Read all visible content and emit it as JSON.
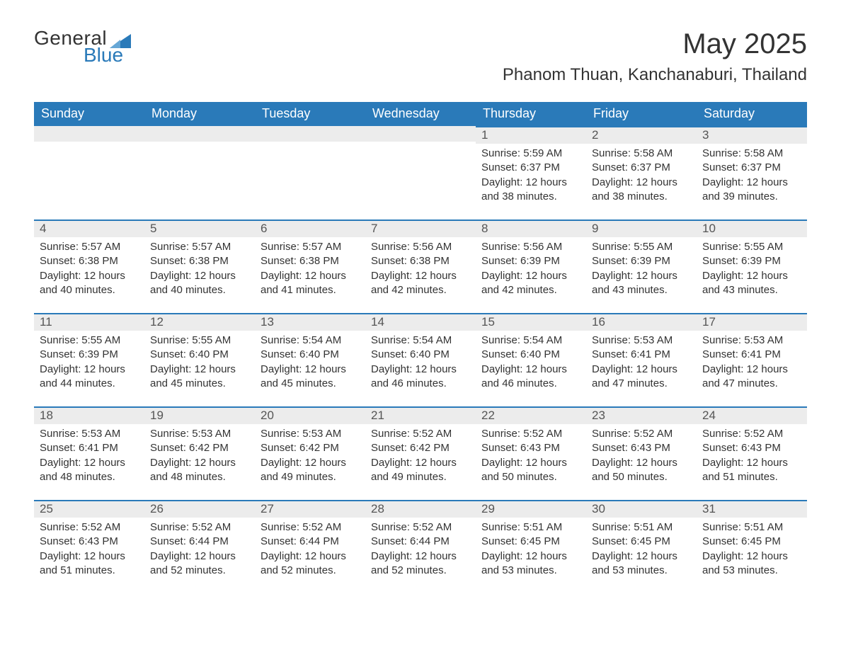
{
  "brand": {
    "word1": "General",
    "word2": "Blue",
    "sail_color": "#2a7ab9",
    "text_color": "#333333"
  },
  "title": "May 2025",
  "location": "Phanom Thuan, Kanchanaburi, Thailand",
  "header_bg": "#2a7ab9",
  "header_text_color": "#ffffff",
  "daynum_bg": "#ececec",
  "daynum_border": "#2a7ab9",
  "body_text_color": "#333333",
  "weekdays": [
    "Sunday",
    "Monday",
    "Tuesday",
    "Wednesday",
    "Thursday",
    "Friday",
    "Saturday"
  ],
  "first_weekday_index": 4,
  "days": [
    {
      "n": 1,
      "sunrise": "5:59 AM",
      "sunset": "6:37 PM",
      "daylight": "12 hours and 38 minutes."
    },
    {
      "n": 2,
      "sunrise": "5:58 AM",
      "sunset": "6:37 PM",
      "daylight": "12 hours and 38 minutes."
    },
    {
      "n": 3,
      "sunrise": "5:58 AM",
      "sunset": "6:37 PM",
      "daylight": "12 hours and 39 minutes."
    },
    {
      "n": 4,
      "sunrise": "5:57 AM",
      "sunset": "6:38 PM",
      "daylight": "12 hours and 40 minutes."
    },
    {
      "n": 5,
      "sunrise": "5:57 AM",
      "sunset": "6:38 PM",
      "daylight": "12 hours and 40 minutes."
    },
    {
      "n": 6,
      "sunrise": "5:57 AM",
      "sunset": "6:38 PM",
      "daylight": "12 hours and 41 minutes."
    },
    {
      "n": 7,
      "sunrise": "5:56 AM",
      "sunset": "6:38 PM",
      "daylight": "12 hours and 42 minutes."
    },
    {
      "n": 8,
      "sunrise": "5:56 AM",
      "sunset": "6:39 PM",
      "daylight": "12 hours and 42 minutes."
    },
    {
      "n": 9,
      "sunrise": "5:55 AM",
      "sunset": "6:39 PM",
      "daylight": "12 hours and 43 minutes."
    },
    {
      "n": 10,
      "sunrise": "5:55 AM",
      "sunset": "6:39 PM",
      "daylight": "12 hours and 43 minutes."
    },
    {
      "n": 11,
      "sunrise": "5:55 AM",
      "sunset": "6:39 PM",
      "daylight": "12 hours and 44 minutes."
    },
    {
      "n": 12,
      "sunrise": "5:55 AM",
      "sunset": "6:40 PM",
      "daylight": "12 hours and 45 minutes."
    },
    {
      "n": 13,
      "sunrise": "5:54 AM",
      "sunset": "6:40 PM",
      "daylight": "12 hours and 45 minutes."
    },
    {
      "n": 14,
      "sunrise": "5:54 AM",
      "sunset": "6:40 PM",
      "daylight": "12 hours and 46 minutes."
    },
    {
      "n": 15,
      "sunrise": "5:54 AM",
      "sunset": "6:40 PM",
      "daylight": "12 hours and 46 minutes."
    },
    {
      "n": 16,
      "sunrise": "5:53 AM",
      "sunset": "6:41 PM",
      "daylight": "12 hours and 47 minutes."
    },
    {
      "n": 17,
      "sunrise": "5:53 AM",
      "sunset": "6:41 PM",
      "daylight": "12 hours and 47 minutes."
    },
    {
      "n": 18,
      "sunrise": "5:53 AM",
      "sunset": "6:41 PM",
      "daylight": "12 hours and 48 minutes."
    },
    {
      "n": 19,
      "sunrise": "5:53 AM",
      "sunset": "6:42 PM",
      "daylight": "12 hours and 48 minutes."
    },
    {
      "n": 20,
      "sunrise": "5:53 AM",
      "sunset": "6:42 PM",
      "daylight": "12 hours and 49 minutes."
    },
    {
      "n": 21,
      "sunrise": "5:52 AM",
      "sunset": "6:42 PM",
      "daylight": "12 hours and 49 minutes."
    },
    {
      "n": 22,
      "sunrise": "5:52 AM",
      "sunset": "6:43 PM",
      "daylight": "12 hours and 50 minutes."
    },
    {
      "n": 23,
      "sunrise": "5:52 AM",
      "sunset": "6:43 PM",
      "daylight": "12 hours and 50 minutes."
    },
    {
      "n": 24,
      "sunrise": "5:52 AM",
      "sunset": "6:43 PM",
      "daylight": "12 hours and 51 minutes."
    },
    {
      "n": 25,
      "sunrise": "5:52 AM",
      "sunset": "6:43 PM",
      "daylight": "12 hours and 51 minutes."
    },
    {
      "n": 26,
      "sunrise": "5:52 AM",
      "sunset": "6:44 PM",
      "daylight": "12 hours and 52 minutes."
    },
    {
      "n": 27,
      "sunrise": "5:52 AM",
      "sunset": "6:44 PM",
      "daylight": "12 hours and 52 minutes."
    },
    {
      "n": 28,
      "sunrise": "5:52 AM",
      "sunset": "6:44 PM",
      "daylight": "12 hours and 52 minutes."
    },
    {
      "n": 29,
      "sunrise": "5:51 AM",
      "sunset": "6:45 PM",
      "daylight": "12 hours and 53 minutes."
    },
    {
      "n": 30,
      "sunrise": "5:51 AM",
      "sunset": "6:45 PM",
      "daylight": "12 hours and 53 minutes."
    },
    {
      "n": 31,
      "sunrise": "5:51 AM",
      "sunset": "6:45 PM",
      "daylight": "12 hours and 53 minutes."
    }
  ],
  "labels": {
    "sunrise": "Sunrise:",
    "sunset": "Sunset:",
    "daylight": "Daylight:"
  }
}
